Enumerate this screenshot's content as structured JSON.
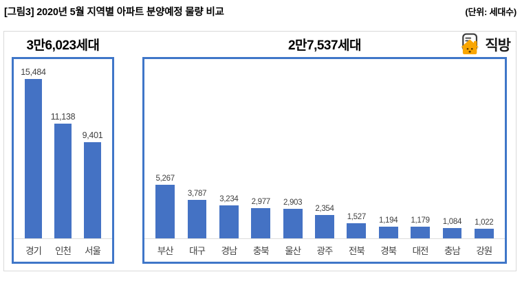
{
  "header": {
    "title": "[그림3] 2020년 5월 지역별 아파트 분양예정 물량 비교",
    "unit": "(단위: 세대수)"
  },
  "logo": {
    "brand": "직방",
    "icon": "zigbang-house-icon",
    "house_color": "#F9A602",
    "outline_color": "#3D3D3D"
  },
  "chart_data": [
    {
      "type": "bar",
      "title": "3만6,023세대",
      "categories": [
        "경기",
        "인천",
        "서울"
      ],
      "values": [
        15484,
        11138,
        9401
      ],
      "value_labels": [
        "15,484",
        "11,138",
        "9,401"
      ],
      "bar_color": "#4472C4",
      "xlabel": "",
      "ylabel": "",
      "ylim": [
        0,
        16500
      ],
      "grid": false,
      "legend": false,
      "data_labels": true
    },
    {
      "type": "bar",
      "title": "2만7,537세대",
      "categories": [
        "부산",
        "대구",
        "경남",
        "충북",
        "울산",
        "광주",
        "전북",
        "경북",
        "대전",
        "충남",
        "강원"
      ],
      "values": [
        5267,
        3787,
        3234,
        2977,
        2903,
        2354,
        1527,
        1194,
        1179,
        1084,
        1022
      ],
      "value_labels": [
        "5,267",
        "3,787",
        "3,234",
        "2,977",
        "2,903",
        "2,354",
        "1,527",
        "1,194",
        "1,179",
        "1,084",
        "1,022"
      ],
      "bar_color": "#4472C4",
      "xlabel": "",
      "ylabel": "",
      "ylim": [
        0,
        16500
      ],
      "grid": false,
      "legend": false,
      "data_labels": true
    }
  ],
  "colors": {
    "bar": "#4472C4",
    "chart_box_border": "#3F76C8",
    "outer_frame_border": "#D9D9D9",
    "axis_line": "#DCDCDC",
    "label_text": "#3F3F3F",
    "title_text": "#000000"
  }
}
